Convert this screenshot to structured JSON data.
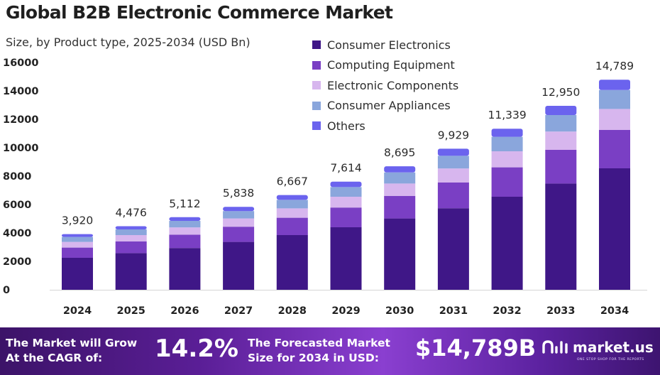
{
  "footer": {
    "cagr_label_line1": "The Market will Grow",
    "cagr_label_line2": "At the CAGR of:",
    "cagr_value": "14.2%",
    "forecast_label_line1": "The Forecasted Market",
    "forecast_label_line2": "Size for 2034 in USD:",
    "forecast_value": "$14,789B",
    "brand_name": "market.us",
    "brand_tagline": "ONE STOP SHOP FOR THE REPORTS",
    "brand_icon": "market-us-logo-icon"
  },
  "chart_data": {
    "type": "bar",
    "stacked": true,
    "title": "Global B2B Electronic Commerce Market",
    "subtitle": "Size, by Product type, 2025-2034 (USD Bn)",
    "xlabel": "",
    "ylabel": "",
    "ylim": [
      0,
      16000
    ],
    "yticks": [
      "0",
      "2000",
      "4000",
      "6000",
      "8000",
      "10000",
      "12000",
      "14000",
      "16000"
    ],
    "categories": [
      "2024",
      "2025",
      "2026",
      "2027",
      "2028",
      "2029",
      "2030",
      "2031",
      "2032",
      "2033",
      "2034"
    ],
    "totals": [
      3920,
      4476,
      5112,
      5838,
      6667,
      7614,
      8695,
      9929,
      11339,
      12950,
      14789
    ],
    "total_labels": [
      "3,920",
      "4,476",
      "5,112",
      "5,838",
      "6,667",
      "7,614",
      "8,695",
      "9,929",
      "11,339",
      "12,950",
      "14,789"
    ],
    "legend_position": "top-right",
    "grid": false,
    "series": [
      {
        "name": "Consumer Electronics",
        "color": "#3f1787",
        "values": [
          2250,
          2580,
          2940,
          3370,
          3850,
          4400,
          5020,
          5740,
          6550,
          7480,
          8550
        ]
      },
      {
        "name": "Computing Equipment",
        "color": "#7a3fc4",
        "values": [
          720,
          820,
          940,
          1070,
          1220,
          1390,
          1590,
          1810,
          2070,
          2370,
          2710
        ]
      },
      {
        "name": "Electronic Components",
        "color": "#d7b6ee",
        "values": [
          400,
          450,
          510,
          580,
          660,
          760,
          870,
          990,
          1130,
          1290,
          1470
        ]
      },
      {
        "name": "Consumer Appliances",
        "color": "#8aa6dc",
        "values": [
          350,
          400,
          460,
          520,
          600,
          680,
          780,
          890,
          1020,
          1160,
          1330
        ]
      },
      {
        "name": "Others",
        "color": "#6b63ee",
        "values": [
          200,
          226,
          262,
          298,
          337,
          384,
          435,
          499,
          569,
          650,
          729
        ]
      }
    ]
  }
}
